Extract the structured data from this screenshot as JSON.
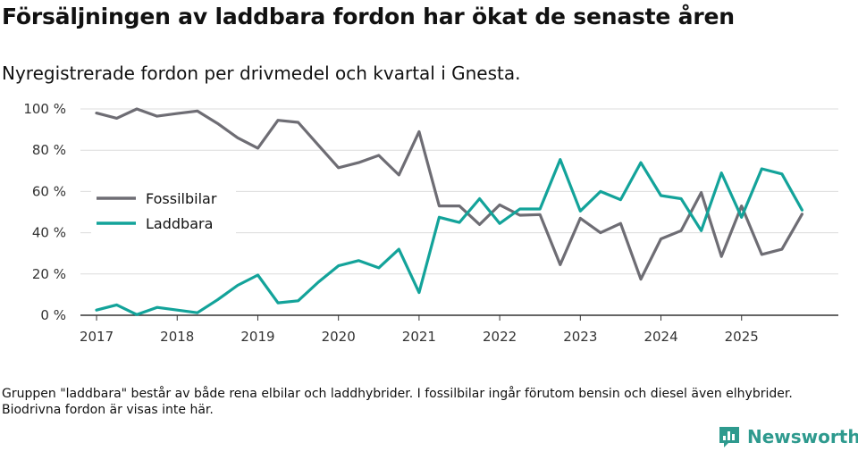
{
  "title": "Försäljningen av laddbara fordon har ökat de senaste åren",
  "subtitle": "Nyregistrerade fordon per drivmedel och kvartal i Gnesta.",
  "footnote": "Gruppen \"laddbara\" består av både rena elbilar och laddhybrider. I fossilbilar ingår förutom bensin och diesel även elhybrider. Biodrivna fordon är visas inte här.",
  "brand": {
    "name": "Newsworthy",
    "color": "#2e9a8e",
    "logo_icon": "bar-chart-logo-icon"
  },
  "chart_data": {
    "type": "line",
    "title": "Försäljningen av laddbara fordon har ökat de senaste åren",
    "subtitle": "Nyregistrerade fordon per drivmedel och kvartal i Gnesta.",
    "xlabel": "",
    "ylabel": "",
    "ylim": [
      0,
      100
    ],
    "xlim": [
      2016.8,
      2026.2
    ],
    "yticks": [
      0,
      20,
      40,
      60,
      80,
      100
    ],
    "ytick_labels": [
      "0 %",
      "20 %",
      "40 %",
      "60 %",
      "80 %",
      "100 %"
    ],
    "xticks": [
      2017,
      2018,
      2019,
      2020,
      2021,
      2022,
      2023,
      2024,
      2025
    ],
    "xtick_labels": [
      "2017",
      "2018",
      "2019",
      "2020",
      "2021",
      "2022",
      "2023",
      "2024",
      "2025"
    ],
    "grid": "horizontal",
    "legend_position": "left-middle",
    "x": [
      2017.0,
      2017.25,
      2017.5,
      2017.75,
      2018.0,
      2018.25,
      2018.5,
      2018.75,
      2019.0,
      2019.25,
      2019.5,
      2019.75,
      2020.0,
      2020.25,
      2020.5,
      2020.75,
      2021.0,
      2021.25,
      2021.5,
      2021.75,
      2022.0,
      2022.25,
      2022.5,
      2022.75,
      2023.0,
      2023.25,
      2023.5,
      2023.75,
      2024.0,
      2024.25,
      2024.5,
      2024.75,
      2025.0,
      2025.25,
      2025.5,
      2025.75
    ],
    "series": [
      {
        "name": "Fossilbilar",
        "color": "#6e6d74",
        "values": [
          98,
          95.5,
          100,
          96.5,
          97.8,
          99,
          93,
          86,
          81,
          94.5,
          93.5,
          82.5,
          71.5,
          74,
          77.5,
          68,
          89,
          53,
          53,
          44,
          53.5,
          48.5,
          48.8,
          24.5,
          47,
          40,
          44.5,
          17.5,
          37,
          41,
          59.5,
          28.5,
          53,
          29.5,
          32,
          49
        ]
      },
      {
        "name": "Laddbara",
        "color": "#13a39a",
        "values": [
          2.5,
          5,
          0.3,
          3.8,
          2.5,
          1.2,
          7.5,
          14.5,
          19.5,
          6,
          7,
          16,
          24,
          26.5,
          23,
          32,
          11,
          47.5,
          45,
          56.5,
          44.5,
          51.5,
          51.5,
          75.5,
          50.5,
          60,
          56,
          74,
          58,
          56.5,
          41,
          69,
          47.5,
          71,
          68.5,
          51
        ]
      }
    ]
  }
}
